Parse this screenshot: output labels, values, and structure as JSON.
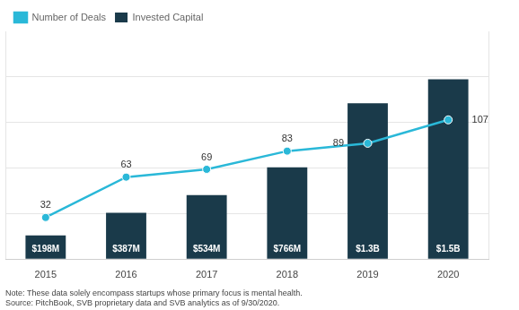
{
  "chart_data": {
    "type": "bar",
    "categories": [
      "2015",
      "2016",
      "2017",
      "2018",
      "2019",
      "2020"
    ],
    "series": [
      {
        "name": "Invested Capital",
        "type": "bar",
        "color": "#1a3a4a",
        "values": [
          198,
          387,
          534,
          766,
          1300,
          1500
        ],
        "value_labels": [
          "$198M",
          "$387M",
          "$534M",
          "$766M",
          "$1.3B",
          "$1.5B"
        ],
        "data_labels": true
      },
      {
        "name": "Number of Deals",
        "type": "line",
        "color": "#2ab8d8",
        "marker": "circle",
        "axis": "y2",
        "values": [
          32,
          63,
          69,
          83,
          89,
          107
        ],
        "data_labels": true
      }
    ],
    "ylim": [
      0,
      1900
    ],
    "yticks": [
      0,
      380,
      760,
      1140,
      1520
    ],
    "y2lim": [
      0,
      175
    ],
    "grid": true,
    "tick_labels": "x",
    "legend": "top-left",
    "annotations": [
      "Note: These data solely encompass startups whose primary focus is mental health.",
      "Source: PitchBook, SVB proprietary data and SVB analytics as of 9/30/2020."
    ]
  }
}
